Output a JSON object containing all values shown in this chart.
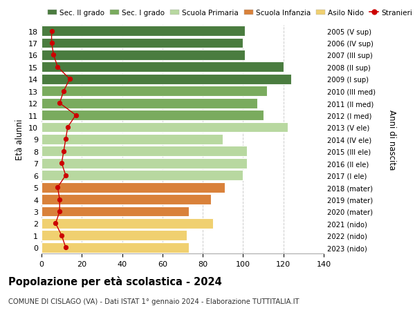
{
  "ages": [
    18,
    17,
    16,
    15,
    14,
    13,
    12,
    11,
    10,
    9,
    8,
    7,
    6,
    5,
    4,
    3,
    2,
    1,
    0
  ],
  "right_labels": [
    "2005 (V sup)",
    "2006 (IV sup)",
    "2007 (III sup)",
    "2008 (II sup)",
    "2009 (I sup)",
    "2010 (III med)",
    "2011 (II med)",
    "2012 (I med)",
    "2013 (V ele)",
    "2014 (IV ele)",
    "2015 (III ele)",
    "2016 (II ele)",
    "2017 (I ele)",
    "2018 (mater)",
    "2019 (mater)",
    "2020 (mater)",
    "2021 (nido)",
    "2022 (nido)",
    "2023 (nido)"
  ],
  "bar_values": [
    101,
    100,
    101,
    120,
    124,
    112,
    107,
    110,
    122,
    90,
    102,
    102,
    100,
    91,
    84,
    73,
    85,
    72,
    73
  ],
  "bar_colors": [
    "#4a7c3f",
    "#4a7c3f",
    "#4a7c3f",
    "#4a7c3f",
    "#4a7c3f",
    "#7aab5e",
    "#7aab5e",
    "#7aab5e",
    "#b8d8a0",
    "#b8d8a0",
    "#b8d8a0",
    "#b8d8a0",
    "#b8d8a0",
    "#d9813a",
    "#d9813a",
    "#d9813a",
    "#f0d070",
    "#f0d070",
    "#f0d070"
  ],
  "stranieri_values": [
    5,
    5,
    6,
    8,
    14,
    11,
    9,
    17,
    13,
    12,
    11,
    10,
    12,
    8,
    9,
    9,
    7,
    10,
    12
  ],
  "legend_labels": [
    "Sec. II grado",
    "Sec. I grado",
    "Scuola Primaria",
    "Scuola Infanzia",
    "Asilo Nido",
    "Stranieri"
  ],
  "legend_colors": [
    "#4a7c3f",
    "#7aab5e",
    "#b8d8a0",
    "#d9813a",
    "#f0d070",
    "#cc0000"
  ],
  "title": "Popolazione per età scolastica - 2024",
  "subtitle": "COMUNE DI CISLAGO (VA) - Dati ISTAT 1° gennaio 2024 - Elaborazione TUTTITALIA.IT",
  "ylabel_left": "Età alunni",
  "ylabel_right": "Anni di nascita",
  "xlim": [
    0,
    140
  ],
  "xticks": [
    0,
    20,
    40,
    60,
    80,
    100,
    120,
    140
  ],
  "background_color": "#ffffff",
  "bar_edgecolor": "white",
  "grid_color": "#cccccc"
}
